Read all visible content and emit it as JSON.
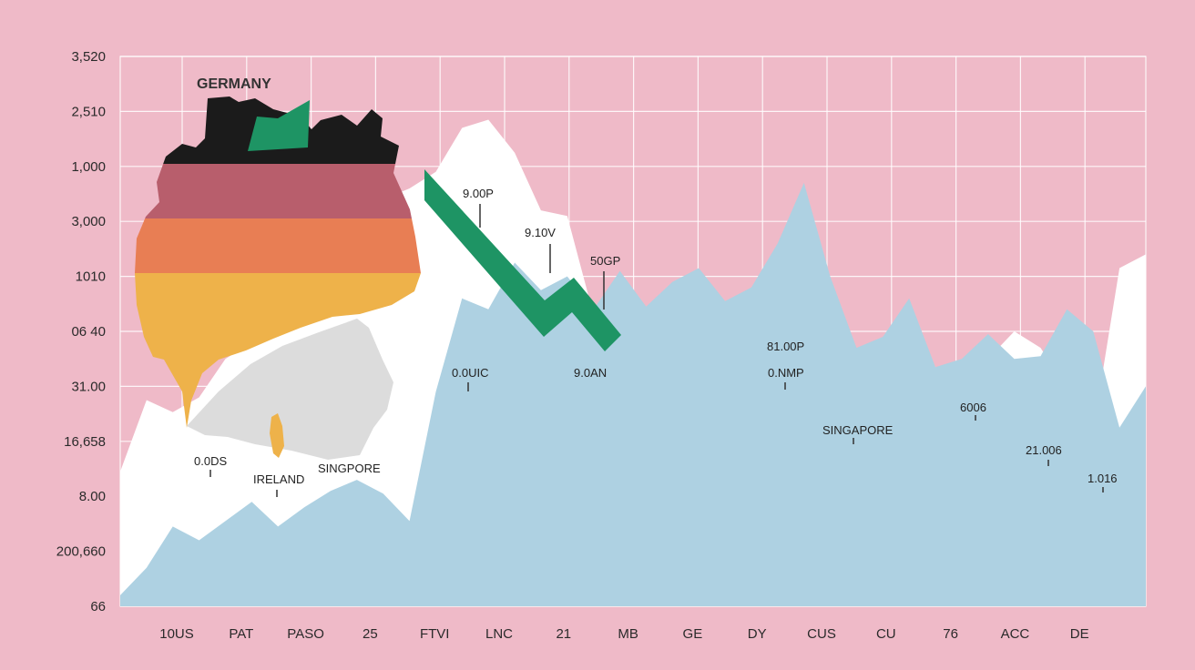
{
  "chart_data": {
    "type": "area",
    "title": "GERMANY",
    "y_tick_labels": [
      "3,520",
      "2,510",
      "1,000",
      "3,000",
      "1010",
      "06 40",
      "31.00",
      "16,658",
      "8.00",
      "200,660",
      "66"
    ],
    "x_tick_labels": [
      "10US",
      "PAT",
      "PASO",
      "25",
      "FTVI",
      "LNC",
      "21",
      "MB",
      "GE",
      "DY",
      "CUS",
      "CU",
      "76",
      "ACC",
      "DE"
    ],
    "grid": true,
    "series": [
      {
        "role": "upper-band",
        "color": "#ffffff",
        "values": [
          7.55,
          6.25,
          6.47,
          6.2,
          5.5,
          5.2,
          4.0,
          3.6,
          3.5,
          2.8,
          2.6,
          2.4,
          2.1,
          1.3,
          1.15,
          1.75,
          2.8,
          2.9,
          4.7,
          5.35,
          6.2,
          5.4,
          4.9,
          6.0,
          6.3,
          5.0,
          4.7,
          7.45,
          6.7,
          6.3,
          5.0,
          5.65,
          5.9,
          5.5,
          5.0,
          5.3,
          6.05,
          6.8,
          3.85,
          3.6
        ]
      },
      {
        "role": "lower-band",
        "color": "#aed1e2",
        "values": [
          9.8,
          9.3,
          8.55,
          8.8,
          8.45,
          8.1,
          8.55,
          8.2,
          7.9,
          7.7,
          7.95,
          8.45,
          6.1,
          4.4,
          4.6,
          3.75,
          4.25,
          4.0,
          4.6,
          3.9,
          4.55,
          4.1,
          3.85,
          4.45,
          4.2,
          3.4,
          2.3,
          4.0,
          5.3,
          5.1,
          4.4,
          5.65,
          5.5,
          5.05,
          5.5,
          5.45,
          4.6,
          5.0,
          6.75,
          6.0
        ]
      }
    ],
    "trend_arrow": {
      "color": "#1e9464",
      "direction": "down"
    },
    "data_labels": [
      "9.00P",
      "9.10V",
      "50GP",
      "0.0UIC",
      "9.0AN",
      "81.00P",
      "0.NMP",
      "6006",
      "SINGAPORE",
      "21.006",
      "1.016",
      "0.0DS",
      "IRELAND",
      "SINGPORE"
    ],
    "overlay": {
      "flag_colors": [
        "#1b1b1b",
        "#b85e6c",
        "#e87e54",
        "#eeb24a"
      ],
      "region_color": "#dcdcdc"
    }
  }
}
